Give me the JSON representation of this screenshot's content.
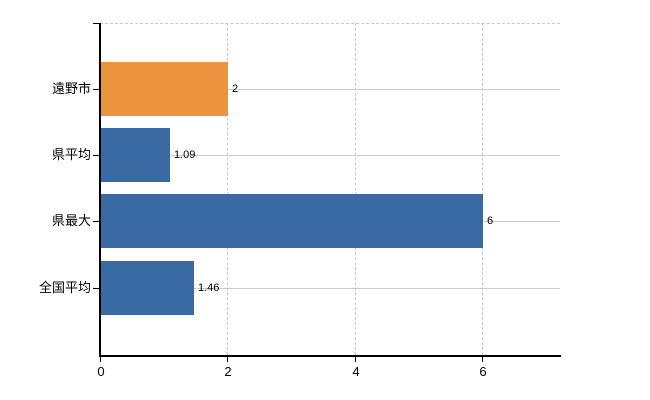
{
  "chart_data": {
    "type": "bar",
    "orientation": "horizontal",
    "title": "",
    "xlabel": "",
    "ylabel": "",
    "categories": [
      "遠野市",
      "県平均",
      "県最大",
      "全国平均"
    ],
    "values": [
      2,
      1.09,
      6,
      1.46
    ],
    "value_labels": [
      "2",
      "1.09",
      "6",
      "1.46"
    ],
    "bar_colors": [
      "#ec9340",
      "#3a6aa3",
      "#3a6aa3",
      "#3a6aa3"
    ],
    "x_ticks": [
      0,
      2,
      4,
      6
    ],
    "x_tick_labels": [
      "0",
      "2",
      "4",
      "6"
    ],
    "xlim": [
      0,
      7.2
    ],
    "grid": true,
    "legend_position": "none"
  },
  "colors": {
    "background": "#ffffff",
    "axis": "#000000",
    "gridline": "#cccccc",
    "dashed_border": "#c9c9c9",
    "text": "#000000",
    "highlight_bar": "#ec9340",
    "default_bar": "#3a6aa3"
  }
}
